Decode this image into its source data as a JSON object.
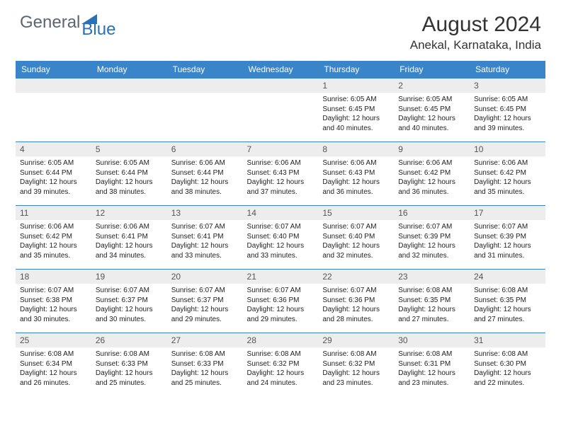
{
  "brand": {
    "part1": "General",
    "part2": "Blue"
  },
  "title": "August 2024",
  "location": "Anekal, Karnataka, India",
  "colors": {
    "header_bg": "#3a84c9",
    "header_text": "#ffffff",
    "daynum_bg": "#ededed",
    "cell_border": "#3a84c9",
    "text": "#222222",
    "brand_gray": "#5c6670",
    "brand_blue": "#2a70b8",
    "background": "#ffffff"
  },
  "day_headers": [
    "Sunday",
    "Monday",
    "Tuesday",
    "Wednesday",
    "Thursday",
    "Friday",
    "Saturday"
  ],
  "weeks": [
    [
      {
        "n": "",
        "sr": "",
        "ss": "",
        "dl": ""
      },
      {
        "n": "",
        "sr": "",
        "ss": "",
        "dl": ""
      },
      {
        "n": "",
        "sr": "",
        "ss": "",
        "dl": ""
      },
      {
        "n": "",
        "sr": "",
        "ss": "",
        "dl": ""
      },
      {
        "n": "1",
        "sr": "6:05 AM",
        "ss": "6:45 PM",
        "dl": "12 hours and 40 minutes."
      },
      {
        "n": "2",
        "sr": "6:05 AM",
        "ss": "6:45 PM",
        "dl": "12 hours and 40 minutes."
      },
      {
        "n": "3",
        "sr": "6:05 AM",
        "ss": "6:45 PM",
        "dl": "12 hours and 39 minutes."
      }
    ],
    [
      {
        "n": "4",
        "sr": "6:05 AM",
        "ss": "6:44 PM",
        "dl": "12 hours and 39 minutes."
      },
      {
        "n": "5",
        "sr": "6:05 AM",
        "ss": "6:44 PM",
        "dl": "12 hours and 38 minutes."
      },
      {
        "n": "6",
        "sr": "6:06 AM",
        "ss": "6:44 PM",
        "dl": "12 hours and 38 minutes."
      },
      {
        "n": "7",
        "sr": "6:06 AM",
        "ss": "6:43 PM",
        "dl": "12 hours and 37 minutes."
      },
      {
        "n": "8",
        "sr": "6:06 AM",
        "ss": "6:43 PM",
        "dl": "12 hours and 36 minutes."
      },
      {
        "n": "9",
        "sr": "6:06 AM",
        "ss": "6:42 PM",
        "dl": "12 hours and 36 minutes."
      },
      {
        "n": "10",
        "sr": "6:06 AM",
        "ss": "6:42 PM",
        "dl": "12 hours and 35 minutes."
      }
    ],
    [
      {
        "n": "11",
        "sr": "6:06 AM",
        "ss": "6:42 PM",
        "dl": "12 hours and 35 minutes."
      },
      {
        "n": "12",
        "sr": "6:06 AM",
        "ss": "6:41 PM",
        "dl": "12 hours and 34 minutes."
      },
      {
        "n": "13",
        "sr": "6:07 AM",
        "ss": "6:41 PM",
        "dl": "12 hours and 33 minutes."
      },
      {
        "n": "14",
        "sr": "6:07 AM",
        "ss": "6:40 PM",
        "dl": "12 hours and 33 minutes."
      },
      {
        "n": "15",
        "sr": "6:07 AM",
        "ss": "6:40 PM",
        "dl": "12 hours and 32 minutes."
      },
      {
        "n": "16",
        "sr": "6:07 AM",
        "ss": "6:39 PM",
        "dl": "12 hours and 32 minutes."
      },
      {
        "n": "17",
        "sr": "6:07 AM",
        "ss": "6:39 PM",
        "dl": "12 hours and 31 minutes."
      }
    ],
    [
      {
        "n": "18",
        "sr": "6:07 AM",
        "ss": "6:38 PM",
        "dl": "12 hours and 30 minutes."
      },
      {
        "n": "19",
        "sr": "6:07 AM",
        "ss": "6:37 PM",
        "dl": "12 hours and 30 minutes."
      },
      {
        "n": "20",
        "sr": "6:07 AM",
        "ss": "6:37 PM",
        "dl": "12 hours and 29 minutes."
      },
      {
        "n": "21",
        "sr": "6:07 AM",
        "ss": "6:36 PM",
        "dl": "12 hours and 29 minutes."
      },
      {
        "n": "22",
        "sr": "6:07 AM",
        "ss": "6:36 PM",
        "dl": "12 hours and 28 minutes."
      },
      {
        "n": "23",
        "sr": "6:08 AM",
        "ss": "6:35 PM",
        "dl": "12 hours and 27 minutes."
      },
      {
        "n": "24",
        "sr": "6:08 AM",
        "ss": "6:35 PM",
        "dl": "12 hours and 27 minutes."
      }
    ],
    [
      {
        "n": "25",
        "sr": "6:08 AM",
        "ss": "6:34 PM",
        "dl": "12 hours and 26 minutes."
      },
      {
        "n": "26",
        "sr": "6:08 AM",
        "ss": "6:33 PM",
        "dl": "12 hours and 25 minutes."
      },
      {
        "n": "27",
        "sr": "6:08 AM",
        "ss": "6:33 PM",
        "dl": "12 hours and 25 minutes."
      },
      {
        "n": "28",
        "sr": "6:08 AM",
        "ss": "6:32 PM",
        "dl": "12 hours and 24 minutes."
      },
      {
        "n": "29",
        "sr": "6:08 AM",
        "ss": "6:32 PM",
        "dl": "12 hours and 23 minutes."
      },
      {
        "n": "30",
        "sr": "6:08 AM",
        "ss": "6:31 PM",
        "dl": "12 hours and 23 minutes."
      },
      {
        "n": "31",
        "sr": "6:08 AM",
        "ss": "6:30 PM",
        "dl": "12 hours and 22 minutes."
      }
    ]
  ],
  "labels": {
    "sunrise": "Sunrise:",
    "sunset": "Sunset:",
    "daylight": "Daylight:"
  }
}
